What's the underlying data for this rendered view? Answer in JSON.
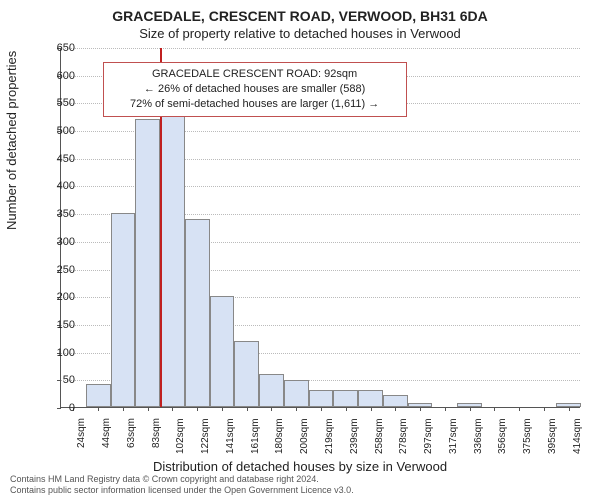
{
  "title_main": "GRACEDALE, CRESCENT ROAD, VERWOOD, BH31 6DA",
  "title_sub": "Size of property relative to detached houses in Verwood",
  "chart": {
    "type": "histogram",
    "ylabel": "Number of detached properties",
    "xlabel": "Distribution of detached houses by size in Verwood",
    "ylim": [
      0,
      650
    ],
    "yticks": [
      0,
      50,
      100,
      150,
      200,
      250,
      300,
      350,
      400,
      450,
      500,
      550,
      600,
      650
    ],
    "ytick_fontsize": 11,
    "xtick_fontsize": 10,
    "label_fontsize": 13,
    "title_fontsize": 14,
    "bar_fill": "#d7e2f4",
    "bar_border": "#888888",
    "grid_color": "#bbbbbb",
    "axis_color": "#555555",
    "background_color": "#ffffff",
    "categories": [
      "24sqm",
      "44sqm",
      "63sqm",
      "83sqm",
      "102sqm",
      "122sqm",
      "141sqm",
      "161sqm",
      "180sqm",
      "200sqm",
      "219sqm",
      "239sqm",
      "258sqm",
      "278sqm",
      "297sqm",
      "317sqm",
      "336sqm",
      "356sqm",
      "375sqm",
      "395sqm",
      "414sqm"
    ],
    "values": [
      0,
      42,
      350,
      520,
      530,
      340,
      200,
      120,
      60,
      48,
      30,
      30,
      30,
      22,
      8,
      0,
      8,
      0,
      0,
      0,
      8
    ],
    "reference_line": {
      "x_index": 3.5,
      "color": "#c02020",
      "width": 2
    }
  },
  "infobox": {
    "line1": "GRACEDALE CRESCENT ROAD: 92sqm",
    "line2": "← 26% of detached houses are smaller (588)",
    "line3": "72% of semi-detached houses are larger (1,611) →",
    "border_color": "#c05050",
    "bg": "#ffffff",
    "fontsize": 11,
    "left_pct": 8,
    "top_pct": 4,
    "width_pct": 55
  },
  "footer": {
    "line1": "Contains HM Land Registry data © Crown copyright and database right 2024.",
    "line2": "Contains public sector information licensed under the Open Government Licence v3.0."
  }
}
